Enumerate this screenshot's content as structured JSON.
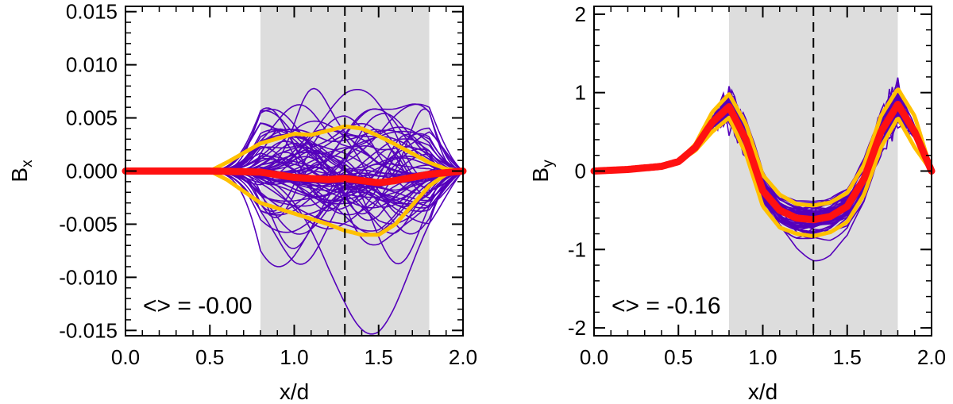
{
  "chart_data": [
    {
      "type": "line",
      "panel": "left",
      "ylabel_base": "B",
      "ylabel_sub": "x",
      "xlabel": "x/d",
      "xlim": [
        0.0,
        2.0
      ],
      "ylim": [
        -0.0155,
        0.0155
      ],
      "xticks": [
        "0.0",
        "0.5",
        "1.0",
        "1.5",
        "2.0"
      ],
      "xtick_values": [
        0.0,
        0.5,
        1.0,
        1.5,
        2.0
      ],
      "yticks": [
        "-0.015",
        "-0.010",
        "-0.005",
        "0.000",
        "0.005",
        "0.010",
        "0.015"
      ],
      "ytick_values": [
        -0.015,
        -0.01,
        -0.005,
        0.0,
        0.005,
        0.01,
        0.015
      ],
      "shaded_region": [
        0.8,
        1.8
      ],
      "dashed_line_x": 1.3,
      "annotation": "<> = -0.00",
      "ensemble": {
        "name": "realizations",
        "count": 70,
        "color": "#5500bb"
      },
      "series": [
        {
          "name": "mean",
          "color": "#ff1111",
          "x": [
            0.0,
            0.5,
            0.8,
            1.0,
            1.2,
            1.3,
            1.4,
            1.5,
            1.6,
            1.8,
            2.0
          ],
          "y": [
            0.0,
            0.0,
            -0.0001,
            -0.0006,
            -0.0008,
            -0.0007,
            -0.0009,
            -0.0011,
            -0.0009,
            -0.0003,
            0.0
          ]
        },
        {
          "name": "upper band",
          "color": "#ffc000",
          "x": [
            0.0,
            0.5,
            0.6,
            0.8,
            1.0,
            1.1,
            1.2,
            1.3,
            1.4,
            1.5,
            1.6,
            1.8,
            1.9,
            2.0
          ],
          "y": [
            0.0,
            0.0,
            0.0008,
            0.0026,
            0.0035,
            0.0034,
            0.0038,
            0.0042,
            0.004,
            0.0033,
            0.0025,
            0.0008,
            0.0002,
            0.0
          ]
        },
        {
          "name": "lower band",
          "color": "#ffc000",
          "x": [
            0.0,
            0.5,
            0.6,
            0.8,
            1.0,
            1.2,
            1.3,
            1.4,
            1.5,
            1.6,
            1.8,
            1.9,
            2.0
          ],
          "y": [
            0.0,
            0.0,
            -0.0008,
            -0.003,
            -0.004,
            -0.005,
            -0.0056,
            -0.006,
            -0.006,
            -0.005,
            -0.0014,
            -0.0003,
            0.0
          ]
        }
      ]
    },
    {
      "type": "line",
      "panel": "right",
      "ylabel_base": "B",
      "ylabel_sub": "y",
      "xlabel": "x/d",
      "xlim": [
        0.0,
        2.0
      ],
      "ylim": [
        -2.1,
        2.1
      ],
      "xticks": [
        "0.0",
        "0.5",
        "1.0",
        "1.5",
        "2.0"
      ],
      "xtick_values": [
        0.0,
        0.5,
        1.0,
        1.5,
        2.0
      ],
      "yticks": [
        "-2",
        "-1",
        "0",
        "1",
        "2"
      ],
      "ytick_values": [
        -2,
        -1,
        0,
        1,
        2
      ],
      "shaded_region": [
        0.8,
        1.8
      ],
      "dashed_line_x": 1.3,
      "annotation": "<> = -0.16",
      "ensemble": {
        "name": "realizations",
        "count": 60,
        "color": "#5500bb"
      },
      "series": [
        {
          "name": "mean",
          "color": "#ff1111",
          "x": [
            0.0,
            0.2,
            0.4,
            0.5,
            0.6,
            0.7,
            0.8,
            0.9,
            1.0,
            1.1,
            1.2,
            1.3,
            1.4,
            1.5,
            1.6,
            1.7,
            1.8,
            1.9,
            2.0
          ],
          "y": [
            0.0,
            0.02,
            0.06,
            0.12,
            0.3,
            0.62,
            0.82,
            0.4,
            -0.25,
            -0.5,
            -0.6,
            -0.62,
            -0.58,
            -0.45,
            -0.1,
            0.5,
            0.85,
            0.5,
            0.0
          ]
        },
        {
          "name": "upper band",
          "color": "#ffc000",
          "x": [
            0.5,
            0.6,
            0.7,
            0.8,
            0.9,
            1.0,
            1.1,
            1.2,
            1.3,
            1.4,
            1.5,
            1.6,
            1.7,
            1.8,
            1.9,
            2.0
          ],
          "y": [
            0.12,
            0.34,
            0.75,
            0.98,
            0.6,
            -0.05,
            -0.3,
            -0.42,
            -0.44,
            -0.4,
            -0.28,
            0.08,
            0.7,
            1.05,
            0.7,
            0.0
          ]
        },
        {
          "name": "lower band",
          "color": "#ffc000",
          "x": [
            0.5,
            0.6,
            0.7,
            0.8,
            0.9,
            1.0,
            1.1,
            1.2,
            1.3,
            1.4,
            1.5,
            1.6,
            1.7,
            1.8,
            1.9,
            2.0
          ],
          "y": [
            0.12,
            0.26,
            0.5,
            0.68,
            0.22,
            -0.45,
            -0.72,
            -0.8,
            -0.83,
            -0.78,
            -0.65,
            -0.3,
            0.3,
            0.68,
            0.3,
            0.0
          ]
        }
      ]
    }
  ]
}
